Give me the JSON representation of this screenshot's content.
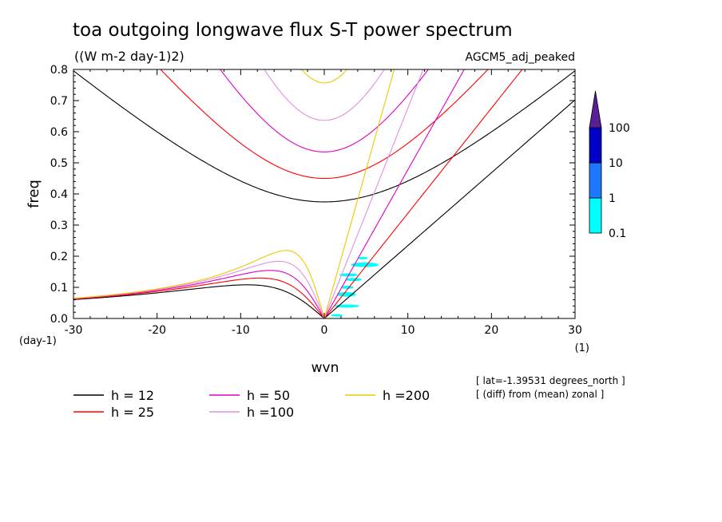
{
  "title": "toa outgoing longwave flux S-T power spectrum",
  "units_label": "((W m-2 day-1)2)",
  "dataset_label": "AGCM5_adj_peaked",
  "footnotes": [
    "[ lat=-1.39531 degrees_north ]",
    "[ (diff) from (mean) zonal ]"
  ],
  "chart_data": {
    "type": "line",
    "xlabel": "wvn",
    "ylabel": "freq",
    "xunit": "(1)",
    "yunit": "(day-1)",
    "xlim": [
      -30,
      30
    ],
    "ylim": [
      0,
      0.8
    ],
    "xticks": [
      -30,
      -20,
      -10,
      0,
      10,
      20,
      30
    ],
    "xtick_labels": [
      "-30",
      "-20",
      "-10",
      "0",
      "10",
      "20",
      "30"
    ],
    "yticks": [
      0,
      0.1,
      0.2,
      0.3,
      0.4,
      0.5,
      0.6,
      0.7,
      0.8
    ],
    "ytick_labels": [
      "0.0",
      "0.1",
      "0.2",
      "0.3",
      "0.4",
      "0.5",
      "0.6",
      "0.7",
      "0.8"
    ],
    "grid": false,
    "series": [
      {
        "name": "h = 12",
        "h": 12,
        "color": "#000000"
      },
      {
        "name": "h = 25",
        "h": 25,
        "color": "#ff0000"
      },
      {
        "name": "h = 50",
        "h": 50,
        "color": "#e000c8"
      },
      {
        "name": "h =100",
        "h": 100,
        "color": "#e090e0"
      },
      {
        "name": "h =200",
        "h": 200,
        "color": "#f0c800"
      }
    ],
    "colorbar": {
      "levels": [
        "0.1",
        "1",
        "10",
        "100"
      ],
      "colors": [
        "#00ffff",
        "#1e78ff",
        "#0000c8",
        "#5a1e96"
      ]
    },
    "shaded_regions": [
      {
        "x": [
          0.8,
          2.2
        ],
        "y": [
          0.006,
          0.014
        ]
      },
      {
        "x": [
          1.2,
          4.2
        ],
        "y": [
          0.035,
          0.045
        ]
      },
      {
        "x": [
          1.5,
          3.8
        ],
        "y": [
          0.07,
          0.085
        ]
      },
      {
        "x": [
          2.0,
          3.5
        ],
        "y": [
          0.095,
          0.105
        ]
      },
      {
        "x": [
          2.5,
          4.5
        ],
        "y": [
          0.12,
          0.13
        ]
      },
      {
        "x": [
          1.8,
          4.0
        ],
        "y": [
          0.135,
          0.145
        ]
      },
      {
        "x": [
          3.2,
          6.5
        ],
        "y": [
          0.165,
          0.18
        ]
      },
      {
        "x": [
          4.0,
          5.2
        ],
        "y": [
          0.19,
          0.198
        ]
      }
    ]
  },
  "legend": [
    {
      "label": "h = 12",
      "color": "#000000"
    },
    {
      "label": "h = 50",
      "color": "#e000c8"
    },
    {
      "label": "h =200",
      "color": "#f0c800"
    },
    {
      "label": "h = 25",
      "color": "#ff0000"
    },
    {
      "label": "h =100",
      "color": "#e090e0"
    }
  ]
}
